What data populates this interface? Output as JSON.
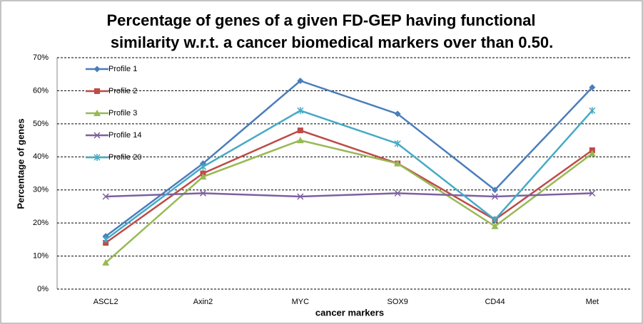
{
  "chart_data": {
    "type": "line",
    "title": [
      "Percentage of genes of a given FD-GEP having functional",
      "similarity w.r.t. a cancer biomedical markers over than 0.50."
    ],
    "x_label": "cancer markers",
    "y_label": "Percentage of genes",
    "categories": [
      "ASCL2",
      "Axin2",
      "MYC",
      "SOX9",
      "CD44",
      "Met"
    ],
    "series": [
      {
        "name": "Profile 1",
        "color": "#4a7ebb",
        "marker": "diamond",
        "values": [
          16,
          38,
          63,
          53,
          30,
          61
        ]
      },
      {
        "name": "Profile 2",
        "color": "#be4b48",
        "marker": "square",
        "values": [
          14,
          35,
          48,
          38,
          21,
          42
        ]
      },
      {
        "name": "Profile 3",
        "color": "#98b954",
        "marker": "triangle",
        "values": [
          8,
          34,
          45,
          38,
          19,
          41
        ]
      },
      {
        "name": "Profile 14",
        "color": "#7d60a0",
        "marker": "x",
        "values": [
          28,
          29,
          28,
          29,
          28,
          29
        ]
      },
      {
        "name": "Profile 20",
        "color": "#46aac5",
        "marker": "star",
        "values": [
          15,
          37,
          54,
          44,
          21,
          54
        ]
      }
    ],
    "ylim": [
      0,
      70
    ],
    "yticks": [
      {
        "value": 0,
        "label": "0%"
      },
      {
        "value": 10,
        "label": "10%"
      },
      {
        "value": 20,
        "label": "20%"
      },
      {
        "value": 30,
        "label": "30%"
      },
      {
        "value": 40,
        "label": "40%"
      },
      {
        "value": 50,
        "label": "50%"
      },
      {
        "value": 60,
        "label": "60%"
      },
      {
        "value": 70,
        "label": "70%"
      }
    ],
    "grid": true,
    "legend_position": "upper-left"
  }
}
